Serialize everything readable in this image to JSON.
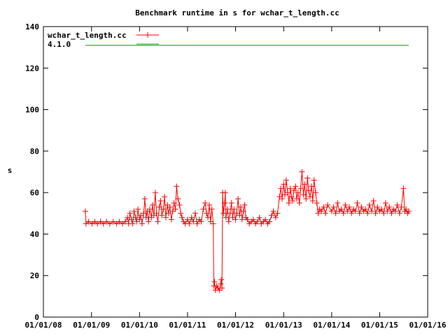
{
  "chart_data": {
    "type": "scatter",
    "title": "Benchmark runtime in s for wchar_t_length.cc",
    "ylabel": "s",
    "xlabel": "",
    "ylim": [
      0,
      140
    ],
    "yticks": [
      0,
      20,
      40,
      60,
      80,
      100,
      120,
      140
    ],
    "xticks": [
      "01/01/08",
      "01/01/09",
      "01/01/10",
      "01/01/11",
      "01/01/12",
      "01/01/13",
      "01/01/14",
      "01/01/15",
      "01/01/16"
    ],
    "xticks_iso": [
      "2008-01-01",
      "2009-01-01",
      "2010-01-01",
      "2011-01-01",
      "2012-01-01",
      "2013-01-01",
      "2014-01-01",
      "2015-01-01",
      "2016-01-01"
    ],
    "xlim": [
      "2008-01-01",
      "2016-01-01"
    ],
    "grid": false,
    "legend": "top-left",
    "series": [
      {
        "name": "wchar_t_length.cc",
        "style": "linespoints",
        "color": "#ff0000",
        "points": [
          [
            "2008-11-15",
            51
          ],
          [
            "2008-11-20",
            45
          ],
          [
            "2008-12-10",
            46
          ],
          [
            "2009-01-05",
            45
          ],
          [
            "2009-01-25",
            46
          ],
          [
            "2009-02-15",
            45
          ],
          [
            "2009-03-10",
            46
          ],
          [
            "2009-04-01",
            45
          ],
          [
            "2009-04-25",
            46
          ],
          [
            "2009-05-20",
            45
          ],
          [
            "2009-06-15",
            46
          ],
          [
            "2009-07-10",
            45
          ],
          [
            "2009-08-01",
            46
          ],
          [
            "2009-08-25",
            45
          ],
          [
            "2009-09-15",
            46
          ],
          [
            "2009-10-01",
            48
          ],
          [
            "2009-10-10",
            45
          ],
          [
            "2009-10-20",
            50
          ],
          [
            "2009-11-01",
            47
          ],
          [
            "2009-11-10",
            45
          ],
          [
            "2009-11-20",
            51
          ],
          [
            "2009-12-01",
            48
          ],
          [
            "2009-12-10",
            46
          ],
          [
            "2009-12-20",
            52
          ],
          [
            "2010-01-01",
            47
          ],
          [
            "2010-01-10",
            49
          ],
          [
            "2010-01-20",
            45
          ],
          [
            "2010-02-01",
            50
          ],
          [
            "2010-02-10",
            57
          ],
          [
            "2010-02-20",
            48
          ],
          [
            "2010-03-01",
            51
          ],
          [
            "2010-03-10",
            46
          ],
          [
            "2010-03-20",
            52
          ],
          [
            "2010-04-01",
            48
          ],
          [
            "2010-04-10",
            54
          ],
          [
            "2010-04-20",
            49
          ],
          [
            "2010-05-01",
            60
          ],
          [
            "2010-05-10",
            50
          ],
          [
            "2010-05-20",
            46
          ],
          [
            "2010-06-01",
            53
          ],
          [
            "2010-06-10",
            56
          ],
          [
            "2010-06-20",
            49
          ],
          [
            "2010-07-01",
            52
          ],
          [
            "2010-07-10",
            58
          ],
          [
            "2010-07-20",
            48
          ],
          [
            "2010-08-01",
            54
          ],
          [
            "2010-08-10",
            50
          ],
          [
            "2010-08-20",
            53
          ],
          [
            "2010-09-01",
            47
          ],
          [
            "2010-09-10",
            51
          ],
          [
            "2010-09-20",
            55
          ],
          [
            "2010-10-01",
            52
          ],
          [
            "2010-10-10",
            63
          ],
          [
            "2010-10-20",
            57
          ],
          [
            "2010-11-01",
            54
          ],
          [
            "2010-11-10",
            50
          ],
          [
            "2010-11-20",
            48
          ],
          [
            "2010-12-01",
            46
          ],
          [
            "2010-12-15",
            45
          ],
          [
            "2011-01-01",
            47
          ],
          [
            "2011-01-15",
            45
          ],
          [
            "2011-02-01",
            48
          ],
          [
            "2011-02-15",
            46
          ],
          [
            "2011-03-01",
            50
          ],
          [
            "2011-03-15",
            45
          ],
          [
            "2011-04-01",
            47
          ],
          [
            "2011-04-15",
            46
          ],
          [
            "2011-05-01",
            52
          ],
          [
            "2011-05-15",
            55
          ],
          [
            "2011-05-25",
            50
          ],
          [
            "2011-06-05",
            48
          ],
          [
            "2011-06-15",
            54
          ],
          [
            "2011-06-25",
            46
          ],
          [
            "2011-07-05",
            52
          ],
          [
            "2011-07-15",
            45
          ],
          [
            "2011-07-20",
            15
          ],
          [
            "2011-07-25",
            17
          ],
          [
            "2011-08-01",
            13
          ],
          [
            "2011-08-10",
            15
          ],
          [
            "2011-08-20",
            14
          ],
          [
            "2011-09-01",
            13
          ],
          [
            "2011-09-10",
            16
          ],
          [
            "2011-09-15",
            18
          ],
          [
            "2011-09-20",
            14
          ],
          [
            "2011-09-25",
            60
          ],
          [
            "2011-10-01",
            50
          ],
          [
            "2011-10-10",
            55
          ],
          [
            "2011-10-15",
            60
          ],
          [
            "2011-10-20",
            48
          ],
          [
            "2011-11-01",
            52
          ],
          [
            "2011-11-10",
            46
          ],
          [
            "2011-11-20",
            50
          ],
          [
            "2011-12-01",
            55
          ],
          [
            "2011-12-10",
            48
          ],
          [
            "2011-12-20",
            52
          ],
          [
            "2012-01-01",
            47
          ],
          [
            "2012-01-10",
            50
          ],
          [
            "2012-01-20",
            57
          ],
          [
            "2012-02-01",
            49
          ],
          [
            "2012-02-10",
            53
          ],
          [
            "2012-02-20",
            47
          ],
          [
            "2012-03-01",
            51
          ],
          [
            "2012-03-10",
            54
          ],
          [
            "2012-03-20",
            48
          ],
          [
            "2012-04-01",
            47
          ],
          [
            "2012-04-15",
            45
          ],
          [
            "2012-05-01",
            46
          ],
          [
            "2012-05-15",
            47
          ],
          [
            "2012-06-01",
            45
          ],
          [
            "2012-06-15",
            46
          ],
          [
            "2012-07-01",
            48
          ],
          [
            "2012-07-15",
            45
          ],
          [
            "2012-08-01",
            46
          ],
          [
            "2012-08-15",
            47
          ],
          [
            "2012-09-01",
            45
          ],
          [
            "2012-09-15",
            46
          ],
          [
            "2012-10-01",
            49
          ],
          [
            "2012-10-15",
            51
          ],
          [
            "2012-11-01",
            48
          ],
          [
            "2012-11-15",
            50
          ],
          [
            "2012-12-01",
            58
          ],
          [
            "2012-12-10",
            62
          ],
          [
            "2012-12-20",
            57
          ],
          [
            "2013-01-01",
            64
          ],
          [
            "2013-01-10",
            59
          ],
          [
            "2013-01-20",
            66
          ],
          [
            "2013-02-01",
            60
          ],
          [
            "2013-02-10",
            55
          ],
          [
            "2013-02-20",
            62
          ],
          [
            "2013-03-01",
            58
          ],
          [
            "2013-03-10",
            56
          ],
          [
            "2013-03-20",
            61
          ],
          [
            "2013-04-01",
            63
          ],
          [
            "2013-04-10",
            57
          ],
          [
            "2013-04-20",
            60
          ],
          [
            "2013-05-01",
            55
          ],
          [
            "2013-05-10",
            62
          ],
          [
            "2013-05-20",
            70
          ],
          [
            "2013-06-01",
            59
          ],
          [
            "2013-06-10",
            64
          ],
          [
            "2013-06-20",
            57
          ],
          [
            "2013-07-01",
            67
          ],
          [
            "2013-07-10",
            61
          ],
          [
            "2013-07-20",
            58
          ],
          [
            "2013-08-01",
            63
          ],
          [
            "2013-08-10",
            56
          ],
          [
            "2013-08-20",
            66
          ],
          [
            "2013-09-01",
            60
          ],
          [
            "2013-09-10",
            55
          ],
          [
            "2013-09-20",
            50
          ],
          [
            "2013-10-01",
            52
          ],
          [
            "2013-10-15",
            51
          ],
          [
            "2013-11-01",
            53
          ],
          [
            "2013-11-15",
            50
          ],
          [
            "2013-12-01",
            54
          ],
          [
            "2014-01-01",
            51
          ],
          [
            "2014-01-15",
            53
          ],
          [
            "2014-02-01",
            50
          ],
          [
            "2014-02-15",
            55
          ],
          [
            "2014-03-01",
            51
          ],
          [
            "2014-03-15",
            52
          ],
          [
            "2014-04-01",
            50
          ],
          [
            "2014-04-15",
            54
          ],
          [
            "2014-05-01",
            51
          ],
          [
            "2014-05-15",
            53
          ],
          [
            "2014-06-01",
            50
          ],
          [
            "2014-06-15",
            52
          ],
          [
            "2014-07-01",
            51
          ],
          [
            "2014-07-15",
            55
          ],
          [
            "2014-08-01",
            50
          ],
          [
            "2014-08-15",
            53
          ],
          [
            "2014-09-01",
            51
          ],
          [
            "2014-09-15",
            52
          ],
          [
            "2014-10-01",
            50
          ],
          [
            "2014-10-15",
            54
          ],
          [
            "2014-11-01",
            51
          ],
          [
            "2014-11-15",
            56
          ],
          [
            "2014-12-01",
            50
          ],
          [
            "2014-12-15",
            53
          ],
          [
            "2015-01-01",
            51
          ],
          [
            "2015-01-15",
            52
          ],
          [
            "2015-02-01",
            50
          ],
          [
            "2015-02-15",
            55
          ],
          [
            "2015-03-01",
            51
          ],
          [
            "2015-03-15",
            53
          ],
          [
            "2015-04-01",
            50
          ],
          [
            "2015-04-15",
            52
          ],
          [
            "2015-05-01",
            51
          ],
          [
            "2015-05-15",
            54
          ],
          [
            "2015-06-01",
            50
          ],
          [
            "2015-06-15",
            53
          ],
          [
            "2015-07-01",
            62
          ],
          [
            "2015-07-10",
            51
          ],
          [
            "2015-07-20",
            52
          ],
          [
            "2015-08-01",
            50
          ],
          [
            "2015-08-10",
            51
          ]
        ]
      },
      {
        "name": "4.1.0",
        "style": "line",
        "color": "#00a000",
        "points": [
          [
            "2008-11-15",
            131
          ],
          [
            "2015-08-10",
            131
          ]
        ]
      }
    ]
  }
}
